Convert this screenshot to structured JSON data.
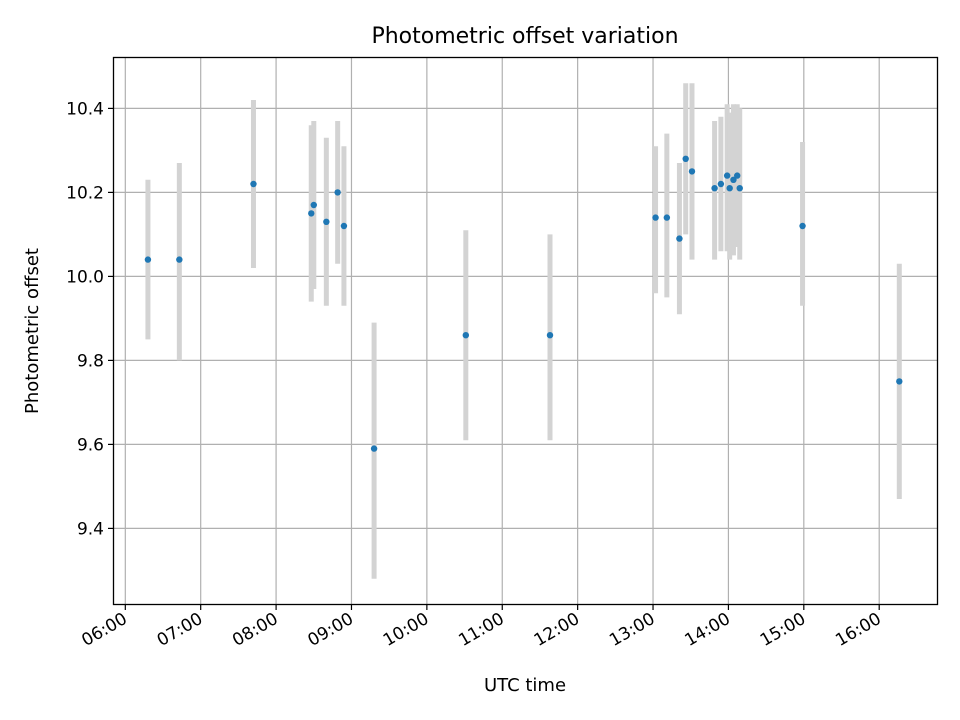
{
  "chart_data": {
    "type": "scatter",
    "title": "Photometric offset variation",
    "xlabel": "UTC time",
    "ylabel": "Photometric offset",
    "x_axis_type": "time",
    "xlim": [
      "05:51",
      "16:46"
    ],
    "ylim": [
      9.22,
      10.52
    ],
    "x_ticks": [
      "06:00",
      "07:00",
      "08:00",
      "09:00",
      "10:00",
      "11:00",
      "12:00",
      "13:00",
      "14:00",
      "15:00",
      "16:00"
    ],
    "y_ticks": [
      "9.4",
      "9.6",
      "9.8",
      "10.0",
      "10.2",
      "10.4"
    ],
    "grid": true,
    "marker_color": "#1f77b4",
    "errorbar_color": "#d3d3d3",
    "points": [
      {
        "time": "06:18",
        "y": 10.04,
        "err_low": 9.85,
        "err_high": 10.23
      },
      {
        "time": "06:43",
        "y": 10.04,
        "err_low": 9.8,
        "err_high": 10.27
      },
      {
        "time": "07:42",
        "y": 10.22,
        "err_low": 10.02,
        "err_high": 10.42
      },
      {
        "time": "08:28",
        "y": 10.15,
        "err_low": 9.94,
        "err_high": 10.36
      },
      {
        "time": "08:30",
        "y": 10.17,
        "err_low": 9.97,
        "err_high": 10.37
      },
      {
        "time": "08:40",
        "y": 10.13,
        "err_low": 9.93,
        "err_high": 10.33
      },
      {
        "time": "08:49",
        "y": 10.2,
        "err_low": 10.03,
        "err_high": 10.37
      },
      {
        "time": "08:54",
        "y": 10.12,
        "err_low": 9.93,
        "err_high": 10.31
      },
      {
        "time": "09:18",
        "y": 9.59,
        "err_low": 9.28,
        "err_high": 9.89
      },
      {
        "time": "10:31",
        "y": 9.86,
        "err_low": 9.61,
        "err_high": 10.11
      },
      {
        "time": "11:38",
        "y": 9.86,
        "err_low": 9.61,
        "err_high": 10.1
      },
      {
        "time": "13:02",
        "y": 10.14,
        "err_low": 9.96,
        "err_high": 10.31
      },
      {
        "time": "13:11",
        "y": 10.14,
        "err_low": 9.95,
        "err_high": 10.34
      },
      {
        "time": "13:21",
        "y": 10.09,
        "err_low": 9.91,
        "err_high": 10.27
      },
      {
        "time": "13:26",
        "y": 10.28,
        "err_low": 10.1,
        "err_high": 10.46
      },
      {
        "time": "13:31",
        "y": 10.25,
        "err_low": 10.04,
        "err_high": 10.46
      },
      {
        "time": "13:49",
        "y": 10.21,
        "err_low": 10.04,
        "err_high": 10.37
      },
      {
        "time": "13:54",
        "y": 10.22,
        "err_low": 10.06,
        "err_high": 10.38
      },
      {
        "time": "13:59",
        "y": 10.24,
        "err_low": 10.06,
        "err_high": 10.41
      },
      {
        "time": "14:01",
        "y": 10.21,
        "err_low": 10.04,
        "err_high": 10.39
      },
      {
        "time": "14:04",
        "y": 10.23,
        "err_low": 10.05,
        "err_high": 10.41
      },
      {
        "time": "14:07",
        "y": 10.24,
        "err_low": 10.07,
        "err_high": 10.41
      },
      {
        "time": "14:09",
        "y": 10.21,
        "err_low": 10.04,
        "err_high": 10.4
      },
      {
        "time": "14:59",
        "y": 10.12,
        "err_low": 9.93,
        "err_high": 10.32
      },
      {
        "time": "16:16",
        "y": 9.75,
        "err_low": 9.47,
        "err_high": 10.03
      }
    ]
  }
}
